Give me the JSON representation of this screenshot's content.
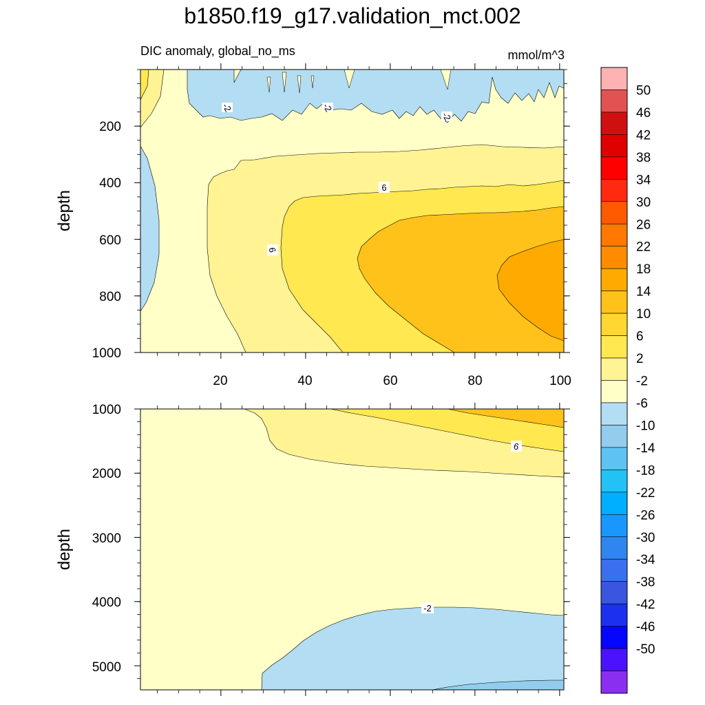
{
  "chart_data": {
    "type": "heatmap",
    "title": "b1850.f19_g17.validation_mct.002",
    "subtitle_left": "DIC anomaly, global_no_ms",
    "subtitle_right": "mmol/m^3",
    "panels": [
      {
        "ylabel": "depth",
        "ylim": [
          0,
          1000
        ],
        "xlim": [
          1,
          101
        ],
        "y_ticks": [
          "200",
          "400",
          "600",
          "800",
          "1000"
        ],
        "x_ticks": [
          "20",
          "40",
          "60",
          "80",
          "100"
        ],
        "contour_labels": [
          "-2",
          "-2",
          "-2",
          "6",
          "6"
        ]
      },
      {
        "ylabel": "depth",
        "ylim": [
          1000,
          5375
        ],
        "xlim": [
          1,
          101
        ],
        "y_ticks": [
          "1000",
          "2000",
          "3000",
          "4000",
          "5000"
        ],
        "contour_labels": [
          "6",
          "-2"
        ]
      }
    ],
    "colorbar": {
      "labels": [
        "50",
        "46",
        "42",
        "38",
        "34",
        "30",
        "26",
        "22",
        "18",
        "14",
        "10",
        "6",
        "2",
        "-2",
        "-6",
        "-10",
        "-14",
        "-18",
        "-22",
        "-26",
        "-30",
        "-34",
        "-38",
        "-42",
        "-46",
        "-50"
      ],
      "colors": [
        "#ffb2b2",
        "#e35252",
        "#d01010",
        "#e00000",
        "#ff0000",
        "#ff2a10",
        "#ff5a00",
        "#ff7800",
        "#ff8c00",
        "#ffaa00",
        "#ffc21a",
        "#ffd730",
        "#ffe850",
        "#fff394",
        "#ffffc8",
        "#b3ddf2",
        "#93cdee",
        "#5fc3f2",
        "#22c2f7",
        "#00afff",
        "#1a97ff",
        "#2f86f0",
        "#3a6ff0",
        "#3a55e0",
        "#1c30f0",
        "#0606ff",
        "#4b12ff",
        "#8a2ff0"
      ]
    }
  }
}
